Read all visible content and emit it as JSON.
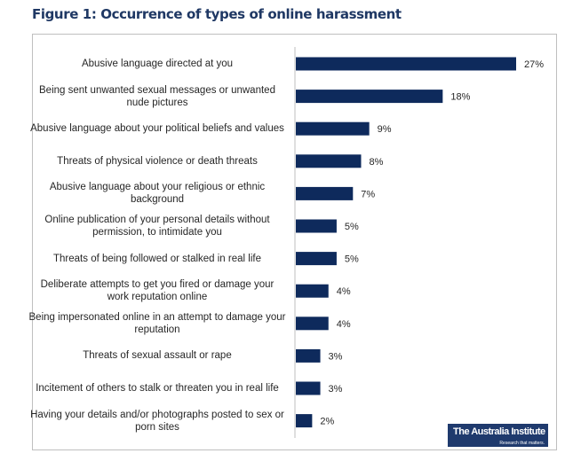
{
  "chart_data": {
    "type": "bar",
    "orientation": "horizontal",
    "title": "Figure 1: Occurrence of types of online harassment",
    "categories": [
      "Abusive language directed at you",
      "Being sent unwanted sexual messages or unwanted nude pictures",
      "Abusive language about your political beliefs and values",
      "Threats of physical violence or death threats",
      "Abusive language about your religious or ethnic background",
      "Online publication of your personal details without permission, to intimidate you",
      "Threats of being followed or stalked in real life",
      "Deliberate attempts to get you fired or damage your work reputation online",
      "Being impersonated online in an attempt to damage your reputation",
      "Threats of sexual assault or rape",
      "Incitement of others to stalk or threaten you in real life",
      "Having your details and/or photographs posted to sex or porn sites"
    ],
    "values": [
      27,
      18,
      9,
      8,
      7,
      5,
      5,
      4,
      4,
      3,
      3,
      2
    ],
    "data_labels": [
      "27%",
      "18%",
      "9%",
      "8%",
      "7%",
      "5%",
      "5%",
      "4%",
      "4%",
      "3%",
      "3%",
      "2%"
    ],
    "bar_color": "#0e2a5c",
    "grid": false,
    "xlabel": "",
    "ylabel": ""
  },
  "logo": {
    "name": "The Australia Institute",
    "tagline": "Research that matters."
  }
}
